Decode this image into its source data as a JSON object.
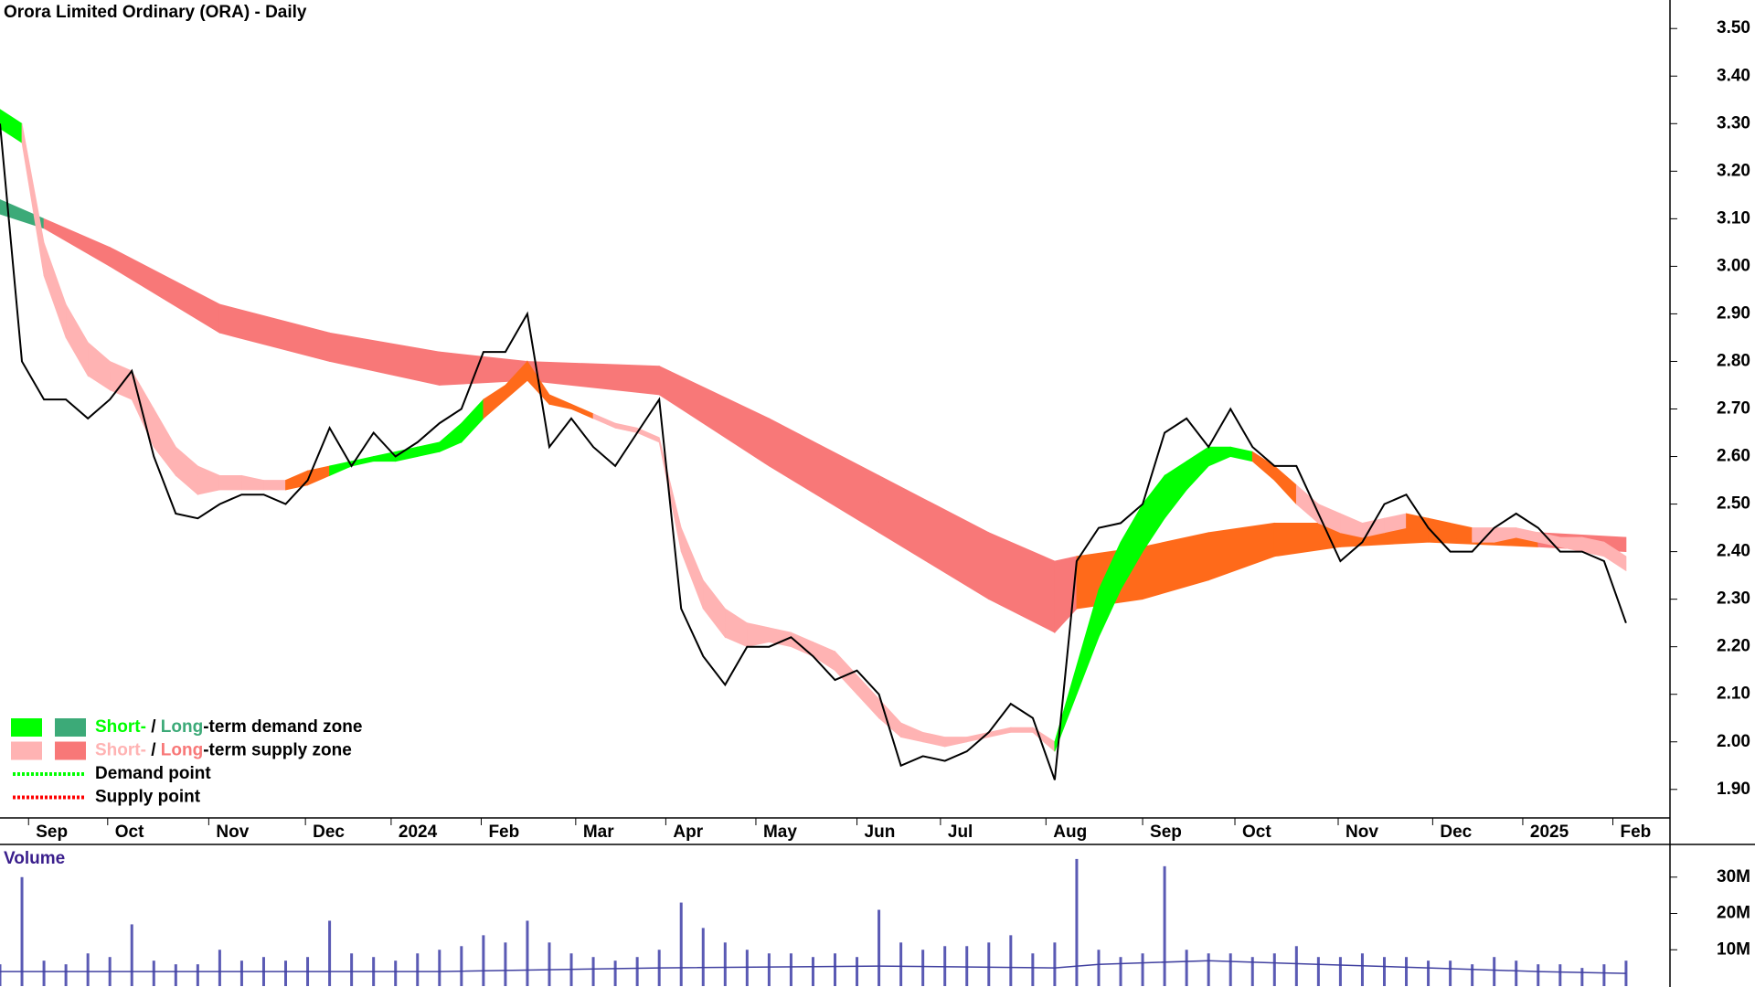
{
  "chart_data": [
    {
      "type": "line",
      "title": "Orora Limited Ordinary (ORA) - Daily",
      "x": [
        0,
        1,
        2,
        3,
        4,
        5,
        6,
        7,
        8,
        9,
        10,
        11,
        12,
        13,
        14,
        15,
        16,
        17,
        18,
        19,
        20,
        21,
        22,
        23,
        24,
        25,
        26,
        27,
        28,
        29,
        30,
        31,
        32,
        33,
        34,
        35,
        36,
        37,
        38,
        39,
        40,
        41,
        42,
        43,
        44,
        45,
        46,
        47,
        48,
        49,
        50,
        51,
        52,
        53,
        54,
        55,
        56,
        57,
        58,
        59,
        60,
        61,
        62,
        63,
        64,
        65,
        66,
        67,
        68,
        69,
        70,
        71,
        72,
        73,
        74
      ],
      "values": [
        3.3,
        2.8,
        2.72,
        2.72,
        2.68,
        2.72,
        2.78,
        2.6,
        2.48,
        2.47,
        2.5,
        2.52,
        2.52,
        2.5,
        2.55,
        2.66,
        2.58,
        2.65,
        2.6,
        2.63,
        2.67,
        2.7,
        2.82,
        2.82,
        2.9,
        2.62,
        2.68,
        2.62,
        2.58,
        2.65,
        2.72,
        2.28,
        2.18,
        2.12,
        2.2,
        2.2,
        2.22,
        2.18,
        2.13,
        2.15,
        2.1,
        1.95,
        1.97,
        1.96,
        1.98,
        2.02,
        2.08,
        2.05,
        1.92,
        2.38,
        2.45,
        2.46,
        2.5,
        2.65,
        2.68,
        2.62,
        2.7,
        2.62,
        2.58,
        2.58,
        2.48,
        2.38,
        2.42,
        2.5,
        2.52,
        2.45,
        2.4,
        2.4,
        2.45,
        2.48,
        2.45,
        2.4,
        2.4,
        2.38,
        2.25
      ],
      "color": "#000000",
      "xlim": [
        0,
        76
      ],
      "xticks": [
        {
          "value": 1.3,
          "label": "Sep"
        },
        {
          "value": 4.9,
          "label": "Oct"
        },
        {
          "value": 9.5,
          "label": "Nov"
        },
        {
          "value": 13.9,
          "label": "Dec"
        },
        {
          "value": 17.8,
          "label": "2024"
        },
        {
          "value": 21.9,
          "label": "Feb"
        },
        {
          "value": 26.2,
          "label": "Mar"
        },
        {
          "value": 30.3,
          "label": "Apr"
        },
        {
          "value": 34.4,
          "label": "May"
        },
        {
          "value": 39.0,
          "label": "Jun"
        },
        {
          "value": 42.8,
          "label": "Jul"
        },
        {
          "value": 47.6,
          "label": "Aug"
        },
        {
          "value": 52.0,
          "label": "Sep"
        },
        {
          "value": 56.2,
          "label": "Oct"
        },
        {
          "value": 60.9,
          "label": "Nov"
        },
        {
          "value": 65.2,
          "label": "Dec"
        },
        {
          "value": 69.3,
          "label": "2025"
        },
        {
          "value": 73.4,
          "label": "Feb"
        }
      ],
      "ylim": [
        1.84,
        3.56
      ],
      "yticks": [
        {
          "value": 1.9,
          "label": "1.90"
        },
        {
          "value": 2.0,
          "label": "2.00"
        },
        {
          "value": 2.1,
          "label": "2.10"
        },
        {
          "value": 2.2,
          "label": "2.20"
        },
        {
          "value": 2.3,
          "label": "2.30"
        },
        {
          "value": 2.4,
          "label": "2.40"
        },
        {
          "value": 2.5,
          "label": "2.50"
        },
        {
          "value": 2.6,
          "label": "2.60"
        },
        {
          "value": 2.7,
          "label": "2.70"
        },
        {
          "value": 2.8,
          "label": "2.80"
        },
        {
          "value": 2.9,
          "label": "2.90"
        },
        {
          "value": 3.0,
          "label": "3.00"
        },
        {
          "value": 3.1,
          "label": "3.10"
        },
        {
          "value": 3.2,
          "label": "3.20"
        },
        {
          "value": 3.3,
          "label": "3.30"
        },
        {
          "value": 3.4,
          "label": "3.40"
        },
        {
          "value": 3.5,
          "label": "3.50"
        }
      ],
      "bands": [
        {
          "x": [
            0,
            1,
            2,
            3,
            4,
            5,
            6,
            7,
            8,
            9,
            10,
            11,
            12,
            13,
            14,
            15,
            16,
            17,
            18,
            19,
            20,
            21,
            22,
            23,
            24,
            25,
            26,
            27,
            28,
            29,
            30,
            31,
            32,
            33,
            34,
            35,
            36,
            37,
            38,
            39,
            40,
            41,
            42,
            43,
            44,
            45,
            46,
            47,
            48,
            49,
            50,
            51,
            52,
            53,
            54,
            55,
            56,
            57,
            58,
            59,
            60,
            61,
            62,
            63,
            64,
            65,
            66,
            67,
            68,
            69,
            70,
            71,
            72,
            73,
            74
          ],
          "upper": [
            3.33,
            3.3,
            3.05,
            2.92,
            2.84,
            2.8,
            2.78,
            2.7,
            2.62,
            2.58,
            2.56,
            2.56,
            2.55,
            2.55,
            2.57,
            2.58,
            2.59,
            2.6,
            2.61,
            2.62,
            2.63,
            2.67,
            2.72,
            2.75,
            2.8,
            2.73,
            2.71,
            2.69,
            2.67,
            2.66,
            2.64,
            2.45,
            2.34,
            2.28,
            2.25,
            2.24,
            2.23,
            2.21,
            2.19,
            2.14,
            2.09,
            2.04,
            2.02,
            2.01,
            2.01,
            2.02,
            2.03,
            2.03,
            2.0,
            2.16,
            2.32,
            2.42,
            2.5,
            2.56,
            2.59,
            2.62,
            2.62,
            2.61,
            2.58,
            2.54,
            2.5,
            2.48,
            2.46,
            2.47,
            2.48,
            2.47,
            2.46,
            2.45,
            2.45,
            2.45,
            2.44,
            2.43,
            2.43,
            2.42,
            2.39
          ],
          "lower": [
            3.29,
            3.26,
            2.98,
            2.85,
            2.77,
            2.74,
            2.72,
            2.62,
            2.56,
            2.52,
            2.53,
            2.53,
            2.53,
            2.53,
            2.54,
            2.56,
            2.58,
            2.59,
            2.59,
            2.6,
            2.61,
            2.63,
            2.68,
            2.72,
            2.76,
            2.71,
            2.7,
            2.68,
            2.66,
            2.65,
            2.63,
            2.4,
            2.28,
            2.22,
            2.2,
            2.21,
            2.2,
            2.18,
            2.15,
            2.1,
            2.05,
            2.01,
            2.0,
            1.99,
            2.0,
            2.01,
            2.02,
            2.02,
            1.98,
            2.1,
            2.22,
            2.32,
            2.4,
            2.47,
            2.53,
            2.58,
            2.6,
            2.59,
            2.55,
            2.5,
            2.46,
            2.44,
            2.43,
            2.44,
            2.45,
            2.44,
            2.43,
            2.42,
            2.42,
            2.43,
            2.42,
            2.41,
            2.4,
            2.39,
            2.36
          ],
          "colors": [
            "#00ff00",
            "#ffb3b3",
            "#ffb3b3",
            "#ffb3b3",
            "#ffb3b3",
            "#ffb3b3",
            "#ffb3b3",
            "#ffb3b3",
            "#ffb3b3",
            "#ffb3b3",
            "#ffb3b3",
            "#ffb3b3",
            "#ffb3b3",
            "#ff6a1a",
            "#ff6a1a",
            "#00ff00",
            "#00ff00",
            "#00ff00",
            "#00ff00",
            "#00ff00",
            "#00ff00",
            "#00ff00",
            "#ff6a1a",
            "#ff6a1a",
            "#ff6a1a",
            "#ff6a1a",
            "#ff6a1a",
            "#ffb3b3",
            "#ffb3b3",
            "#ffb3b3",
            "#ffb3b3",
            "#ffb3b3",
            "#ffb3b3",
            "#ffb3b3",
            "#ffb3b3",
            "#ffb3b3",
            "#ffb3b3",
            "#ffb3b3",
            "#ffb3b3",
            "#ffb3b3",
            "#ffb3b3",
            "#ffb3b3",
            "#ffb3b3",
            "#ffb3b3",
            "#ffb3b3",
            "#ffb3b3",
            "#ffb3b3",
            "#ffb3b3",
            "#00ff00",
            "#00ff00",
            "#00ff00",
            "#00ff00",
            "#00ff00",
            "#00ff00",
            "#00ff00",
            "#00ff00",
            "#00ff00",
            "#ff6a1a",
            "#ff6a1a",
            "#ffb3b3",
            "#ffb3b3",
            "#ffb3b3",
            "#ffb3b3",
            "#ffb3b3",
            "#ff6a1a",
            "#ff6a1a",
            "#ff6a1a",
            "#ffb3b3",
            "#ffb3b3",
            "#ffb3b3",
            "#ffb3b3",
            "#ffb3b3",
            "#ffb3b3",
            "#ffb3b3",
            "#ffb3b3"
          ]
        },
        {
          "x": [
            0,
            2,
            5,
            10,
            15,
            20,
            24,
            30,
            35,
            40,
            45,
            48,
            49,
            52,
            55,
            58,
            61,
            65,
            70,
            74
          ],
          "upper": [
            3.14,
            3.1,
            3.04,
            2.92,
            2.86,
            2.82,
            2.8,
            2.79,
            2.68,
            2.56,
            2.44,
            2.38,
            2.39,
            2.41,
            2.44,
            2.46,
            2.46,
            2.45,
            2.44,
            2.43
          ],
          "lower": [
            3.11,
            3.08,
            3.0,
            2.86,
            2.8,
            2.75,
            2.76,
            2.73,
            2.58,
            2.44,
            2.3,
            2.23,
            2.28,
            2.3,
            2.34,
            2.39,
            2.41,
            2.42,
            2.41,
            2.4
          ],
          "colors": [
            "#3caa78",
            "#f87878",
            "#f87878",
            "#f87878",
            "#f87878",
            "#f87878",
            "#f87878",
            "#f87878",
            "#f87878",
            "#f87878",
            "#f87878",
            "#f87878",
            "#ff6a1a",
            "#ff6a1a",
            "#ff6a1a",
            "#ff6a1a",
            "#ff6a1a",
            "#ff6a1a",
            "#f87878",
            "#f87878"
          ]
        }
      ],
      "legend": {
        "corner": "lower-left",
        "items": [
          {
            "swatches": [
              "#00ff00",
              "#3caa78"
            ],
            "short": "Short-",
            "separator": " / ",
            "long": "Long",
            "text": "-term demand zone"
          },
          {
            "swatches": [
              "#ffb3b3",
              "#f87878"
            ],
            "short": "Short-",
            "separator": " / ",
            "long": "Long",
            "text": "-term supply zone"
          },
          {
            "line_color": "#00ff00",
            "text": "Demand point"
          },
          {
            "line_color": "#ff0000",
            "text": "Supply point"
          }
        ]
      }
    },
    {
      "type": "bar",
      "title": "Volume",
      "x": [
        0,
        1,
        2,
        3,
        4,
        5,
        6,
        7,
        8,
        9,
        10,
        11,
        12,
        13,
        14,
        15,
        16,
        17,
        18,
        19,
        20,
        21,
        22,
        23,
        24,
        25,
        26,
        27,
        28,
        29,
        30,
        31,
        32,
        33,
        34,
        35,
        36,
        37,
        38,
        39,
        40,
        41,
        42,
        43,
        44,
        45,
        46,
        47,
        48,
        49,
        50,
        51,
        52,
        53,
        54,
        55,
        56,
        57,
        58,
        59,
        60,
        61,
        62,
        63,
        64,
        65,
        66,
        67,
        68,
        69,
        70,
        71,
        72,
        73,
        74
      ],
      "values": [
        6000000,
        30000000,
        7000000,
        6000000,
        9000000,
        8000000,
        17000000,
        7000000,
        6000000,
        6000000,
        10000000,
        7000000,
        8000000,
        7000000,
        8000000,
        18000000,
        9000000,
        8000000,
        7000000,
        9000000,
        10000000,
        11000000,
        14000000,
        12000000,
        18000000,
        12000000,
        9000000,
        8000000,
        7000000,
        8000000,
        10000000,
        23000000,
        16000000,
        12000000,
        10000000,
        9000000,
        9000000,
        8000000,
        9000000,
        8000000,
        21000000,
        12000000,
        10000000,
        11000000,
        11000000,
        12000000,
        14000000,
        9000000,
        12000000,
        35000000,
        10000000,
        8000000,
        9000000,
        33000000,
        10000000,
        9000000,
        9000000,
        8000000,
        9000000,
        11000000,
        8000000,
        8000000,
        9000000,
        8000000,
        8000000,
        7000000,
        7000000,
        6000000,
        8000000,
        7000000,
        6000000,
        6000000,
        5000000,
        6000000,
        7000000
      ],
      "color": "#5a5ab4",
      "xlim": [
        0,
        76
      ],
      "ylim": [
        0,
        39000000
      ],
      "yticks": [
        {
          "value": 10000000,
          "label": "10M"
        },
        {
          "value": 20000000,
          "label": "20M"
        },
        {
          "value": 30000000,
          "label": "30M"
        }
      ],
      "moving_average": {
        "x": [
          0,
          10,
          20,
          30,
          40,
          48,
          50,
          55,
          60,
          65,
          70,
          74
        ],
        "values": [
          4000000,
          4000000,
          4000000,
          5000000,
          5500000,
          5000000,
          6000000,
          7000000,
          6000000,
          5000000,
          4000000,
          3500000
        ],
        "color": "#4040a0"
      }
    }
  ]
}
